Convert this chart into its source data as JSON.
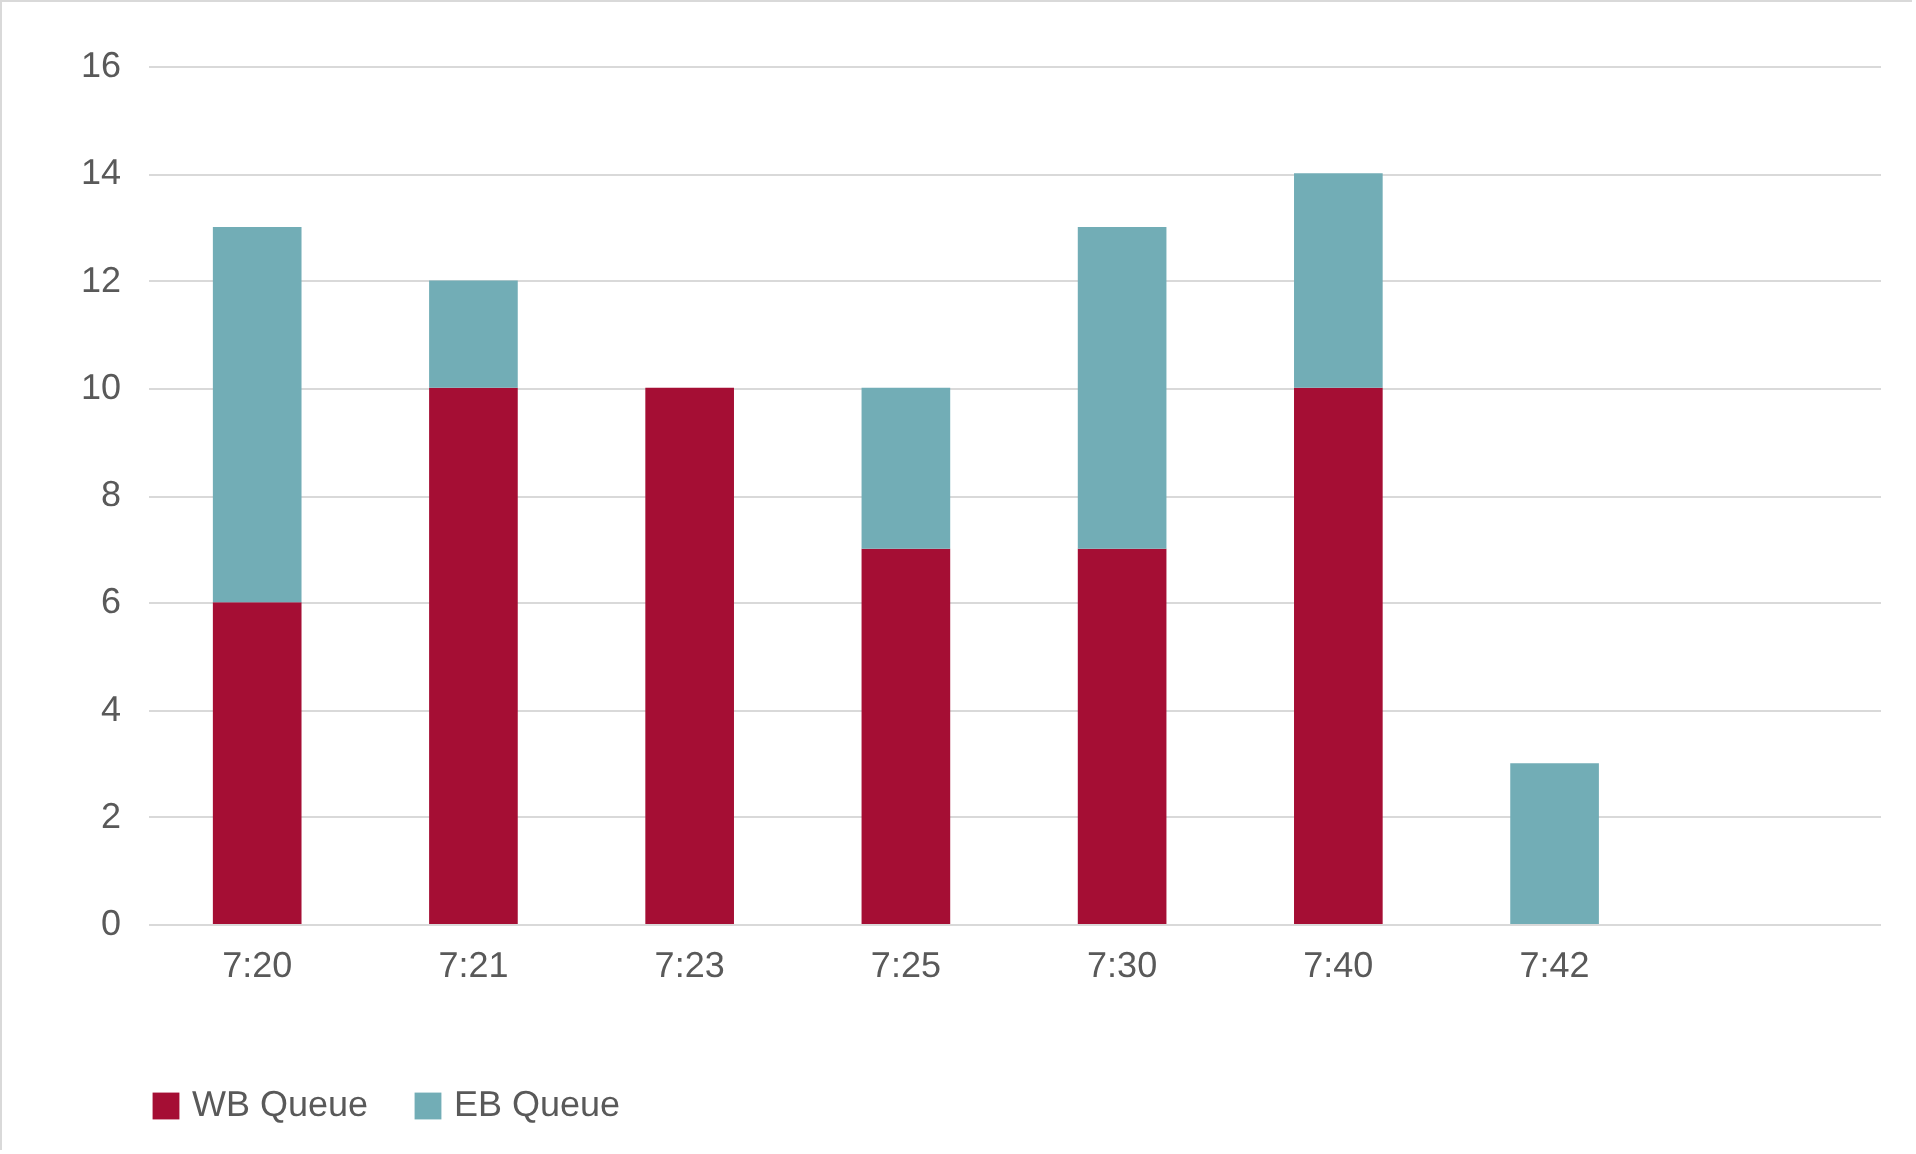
{
  "chart_data": {
    "type": "bar",
    "stacked": true,
    "categories": [
      "7:20",
      "7:21",
      "7:23",
      "7:25",
      "7:30",
      "7:40",
      "7:42",
      null
    ],
    "series": [
      {
        "name": "WB Queue",
        "color": "#a50e34",
        "values": [
          6,
          10,
          10,
          7,
          7,
          10,
          0,
          null
        ]
      },
      {
        "name": "EB Queue",
        "color": "#72adb6",
        "values": [
          7,
          2,
          0,
          3,
          6,
          4,
          3,
          null
        ]
      }
    ],
    "ylim": [
      0,
      16
    ],
    "yticks": [
      0,
      2,
      4,
      6,
      8,
      10,
      12,
      14,
      16
    ],
    "grid": "y",
    "legend": "bottom"
  }
}
